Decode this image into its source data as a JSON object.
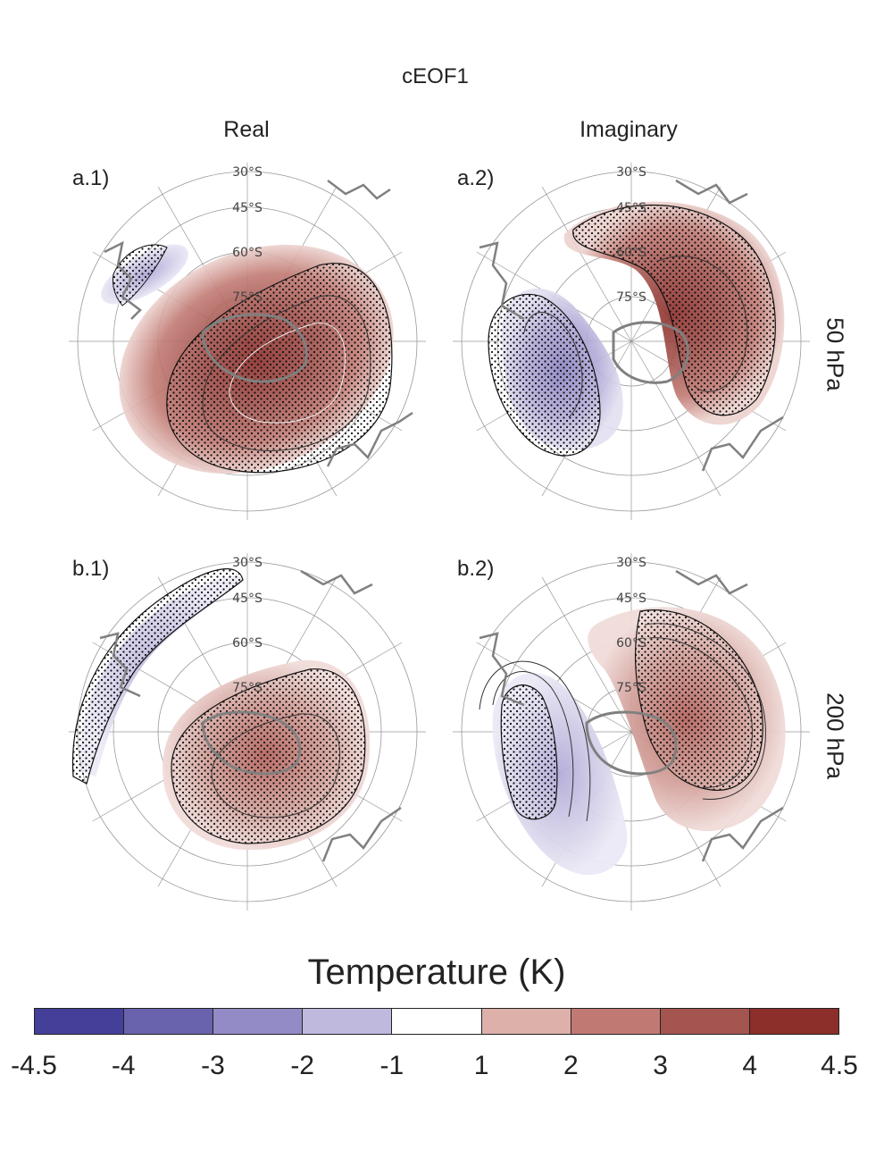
{
  "figure_title": "cEOF1",
  "column_titles": {
    "real": "Real",
    "imaginary": "Imaginary"
  },
  "row_labels": {
    "top": "50 hPa",
    "bottom": "200 hPa"
  },
  "panels": [
    {
      "id": "a1",
      "label": "a.1)"
    },
    {
      "id": "a2",
      "label": "a.2)"
    },
    {
      "id": "b1",
      "label": "b.1)"
    },
    {
      "id": "b2",
      "label": "b.2)"
    }
  ],
  "latitude_labels": [
    "30°S",
    "45°S",
    "60°S",
    "75°S"
  ],
  "colorbar": {
    "title": "Temperature (K)",
    "tick_labels": [
      "-4.5",
      "-4",
      "-3",
      "-2",
      "-1",
      "1",
      "2",
      "3",
      "4",
      "4.5"
    ],
    "colors": [
      "#44409a",
      "#6962ad",
      "#938bc6",
      "#bfb9de",
      "#ffffff",
      "#ddb0aa",
      "#c17a73",
      "#a4554f",
      "#8c2e2a"
    ]
  },
  "colors": {
    "warm_fill": "#c17a73",
    "warm_core": "#8c2e2a",
    "cool_fill": "#938bc6",
    "coastline": "#808080",
    "grid": "#999999"
  }
}
